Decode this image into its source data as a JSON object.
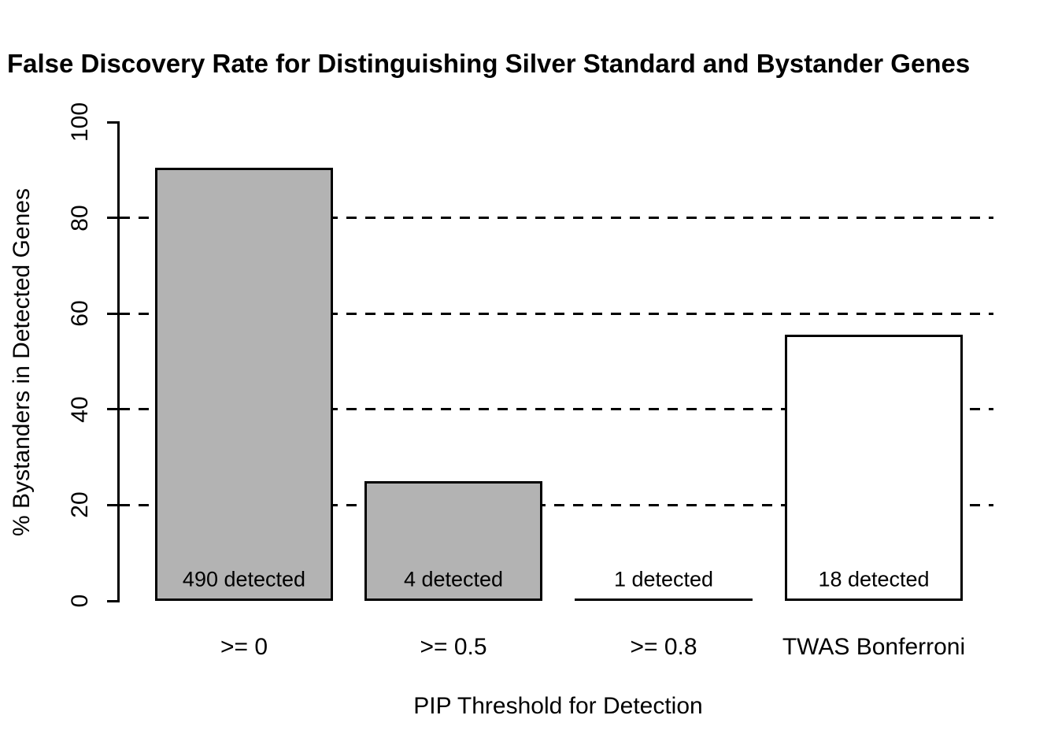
{
  "chart_data": {
    "type": "bar",
    "title": "False Discovery Rate for Distinguishing Silver Standard and Bystander Genes",
    "xlabel": "PIP Threshold for Detection",
    "ylabel": "% Bystanders in Detected Genes",
    "categories": [
      ">= 0",
      ">= 0.5",
      ">= 0.8",
      "TWAS Bonferroni"
    ],
    "values": [
      90.5,
      25,
      0,
      55.6
    ],
    "bar_labels": [
      "490 detected",
      "4 detected",
      "1 detected",
      "18 detected"
    ],
    "bar_fills": [
      "#b3b3b3",
      "#b3b3b3",
      "#b3b3b3",
      "#ffffff"
    ],
    "bar_border_color": "#000000",
    "ylim": [
      0,
      100
    ],
    "yticks": [
      0,
      20,
      40,
      60,
      80,
      100
    ],
    "gridlines_at": [
      20,
      40,
      60,
      80
    ],
    "gridline_style": "dashed",
    "grid": "horizontal-dashed",
    "legend": "none",
    "text_color": "#000000",
    "background": "#ffffff"
  }
}
